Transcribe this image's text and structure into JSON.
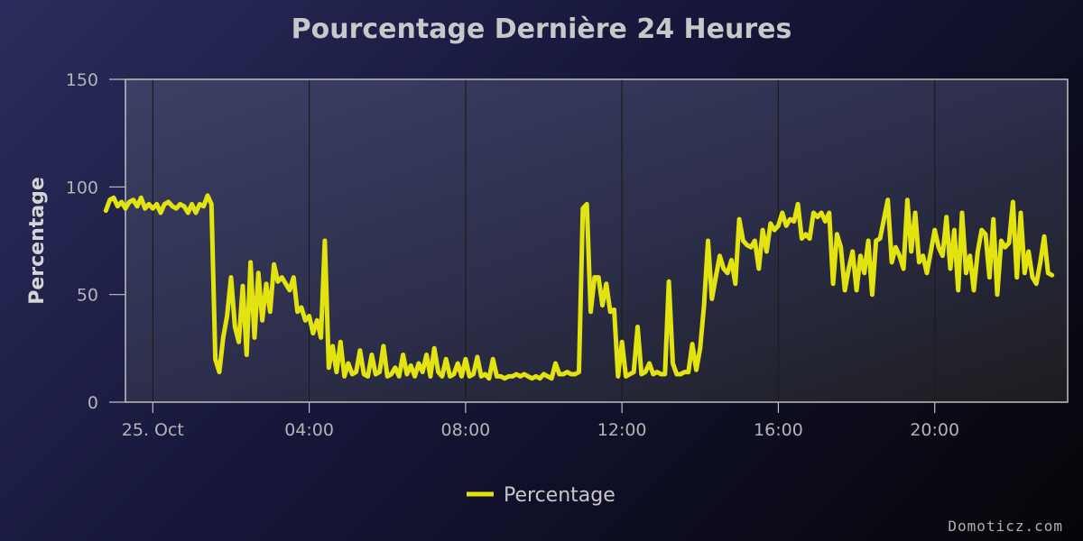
{
  "chart_data": {
    "type": "line",
    "title": "Pourcentage Dernière 24 Heures",
    "ylabel": "Percentage",
    "xlabel": "",
    "ylim": [
      0,
      150
    ],
    "yticks": [
      0,
      50,
      100,
      150
    ],
    "x_start_hour": -0.7,
    "x_end_hour": 23.4,
    "xticks": [
      {
        "hour": 0,
        "label": "25. Oct"
      },
      {
        "hour": 4,
        "label": "04:00"
      },
      {
        "hour": 8,
        "label": "08:00"
      },
      {
        "hour": 12,
        "label": "12:00"
      },
      {
        "hour": 16,
        "label": "16:00"
      },
      {
        "hour": 20,
        "label": "20:00"
      }
    ],
    "grid": "vertical",
    "legend_position": "bottom-center",
    "credit": "Domoticz.com",
    "series": [
      {
        "name": "Percentage",
        "color": "#e3e30f",
        "points": [
          [
            -1.2,
            89
          ],
          [
            -1.1,
            94
          ],
          [
            -1.0,
            95
          ],
          [
            -0.9,
            91
          ],
          [
            -0.8,
            93
          ],
          [
            -0.7,
            90
          ],
          [
            -0.6,
            93
          ],
          [
            -0.5,
            94
          ],
          [
            -0.4,
            91
          ],
          [
            -0.3,
            95
          ],
          [
            -0.2,
            90
          ],
          [
            -0.1,
            92
          ],
          [
            0.0,
            90
          ],
          [
            0.1,
            92
          ],
          [
            0.2,
            88
          ],
          [
            0.3,
            92
          ],
          [
            0.4,
            93
          ],
          [
            0.5,
            91
          ],
          [
            0.6,
            90
          ],
          [
            0.7,
            92
          ],
          [
            0.8,
            91
          ],
          [
            0.9,
            88
          ],
          [
            1.0,
            92
          ],
          [
            1.1,
            88
          ],
          [
            1.2,
            92
          ],
          [
            1.3,
            91
          ],
          [
            1.4,
            96
          ],
          [
            1.5,
            92
          ],
          [
            1.6,
            20
          ],
          [
            1.7,
            14
          ],
          [
            1.8,
            30
          ],
          [
            1.9,
            40
          ],
          [
            2.0,
            58
          ],
          [
            2.1,
            35
          ],
          [
            2.2,
            28
          ],
          [
            2.3,
            54
          ],
          [
            2.4,
            22
          ],
          [
            2.5,
            65
          ],
          [
            2.6,
            30
          ],
          [
            2.7,
            60
          ],
          [
            2.8,
            38
          ],
          [
            2.9,
            55
          ],
          [
            3.0,
            42
          ],
          [
            3.1,
            64
          ],
          [
            3.2,
            56
          ],
          [
            3.3,
            58
          ],
          [
            3.4,
            55
          ],
          [
            3.5,
            52
          ],
          [
            3.6,
            58
          ],
          [
            3.7,
            42
          ],
          [
            3.8,
            44
          ],
          [
            3.9,
            38
          ],
          [
            4.0,
            40
          ],
          [
            4.1,
            32
          ],
          [
            4.2,
            38
          ],
          [
            4.3,
            30
          ],
          [
            4.4,
            75
          ],
          [
            4.5,
            16
          ],
          [
            4.6,
            26
          ],
          [
            4.7,
            14
          ],
          [
            4.8,
            28
          ],
          [
            4.9,
            12
          ],
          [
            5.0,
            18
          ],
          [
            5.1,
            13
          ],
          [
            5.2,
            14
          ],
          [
            5.3,
            24
          ],
          [
            5.4,
            13
          ],
          [
            5.5,
            12
          ],
          [
            5.6,
            22
          ],
          [
            5.7,
            13
          ],
          [
            5.8,
            14
          ],
          [
            5.9,
            26
          ],
          [
            6.0,
            12
          ],
          [
            6.1,
            13
          ],
          [
            6.2,
            16
          ],
          [
            6.3,
            12
          ],
          [
            6.4,
            22
          ],
          [
            6.5,
            13
          ],
          [
            6.6,
            17
          ],
          [
            6.7,
            12
          ],
          [
            6.8,
            18
          ],
          [
            6.9,
            14
          ],
          [
            7.0,
            22
          ],
          [
            7.1,
            12
          ],
          [
            7.2,
            25
          ],
          [
            7.3,
            14
          ],
          [
            7.4,
            12
          ],
          [
            7.5,
            20
          ],
          [
            7.6,
            12
          ],
          [
            7.7,
            13
          ],
          [
            7.8,
            18
          ],
          [
            7.9,
            12
          ],
          [
            8.0,
            20
          ],
          [
            8.1,
            12
          ],
          [
            8.2,
            13
          ],
          [
            8.3,
            21
          ],
          [
            8.4,
            12
          ],
          [
            8.5,
            13
          ],
          [
            8.6,
            11
          ],
          [
            8.7,
            20
          ],
          [
            8.8,
            12
          ],
          [
            8.9,
            12
          ],
          [
            9.0,
            11
          ],
          [
            9.1,
            12
          ],
          [
            9.2,
            12
          ],
          [
            9.3,
            13
          ],
          [
            9.4,
            12
          ],
          [
            9.5,
            13
          ],
          [
            9.6,
            12
          ],
          [
            9.7,
            11
          ],
          [
            9.8,
            12
          ],
          [
            9.9,
            11
          ],
          [
            10.0,
            13
          ],
          [
            10.1,
            12
          ],
          [
            10.2,
            11
          ],
          [
            10.3,
            18
          ],
          [
            10.4,
            13
          ],
          [
            10.5,
            13
          ],
          [
            10.6,
            14
          ],
          [
            10.7,
            13
          ],
          [
            10.8,
            13
          ],
          [
            10.9,
            14
          ],
          [
            11.0,
            90
          ],
          [
            11.1,
            92
          ],
          [
            11.2,
            42
          ],
          [
            11.3,
            58
          ],
          [
            11.4,
            58
          ],
          [
            11.5,
            45
          ],
          [
            11.6,
            55
          ],
          [
            11.7,
            42
          ],
          [
            11.8,
            43
          ],
          [
            11.9,
            12
          ],
          [
            12.0,
            28
          ],
          [
            12.1,
            12
          ],
          [
            12.2,
            13
          ],
          [
            12.3,
            14
          ],
          [
            12.4,
            35
          ],
          [
            12.5,
            13
          ],
          [
            12.6,
            14
          ],
          [
            12.7,
            18
          ],
          [
            12.8,
            13
          ],
          [
            12.9,
            14
          ],
          [
            13.0,
            13
          ],
          [
            13.1,
            13
          ],
          [
            13.2,
            56
          ],
          [
            13.3,
            18
          ],
          [
            13.4,
            13
          ],
          [
            13.5,
            13
          ],
          [
            13.6,
            14
          ],
          [
            13.7,
            14
          ],
          [
            13.8,
            27
          ],
          [
            13.9,
            15
          ],
          [
            14.0,
            25
          ],
          [
            14.1,
            45
          ],
          [
            14.2,
            75
          ],
          [
            14.3,
            48
          ],
          [
            14.4,
            58
          ],
          [
            14.5,
            68
          ],
          [
            14.6,
            62
          ],
          [
            14.7,
            60
          ],
          [
            14.8,
            66
          ],
          [
            14.9,
            55
          ],
          [
            15.0,
            85
          ],
          [
            15.1,
            75
          ],
          [
            15.2,
            73
          ],
          [
            15.3,
            72
          ],
          [
            15.4,
            75
          ],
          [
            15.5,
            62
          ],
          [
            15.6,
            80
          ],
          [
            15.7,
            70
          ],
          [
            15.8,
            83
          ],
          [
            15.9,
            80
          ],
          [
            16.0,
            82
          ],
          [
            16.1,
            88
          ],
          [
            16.2,
            82
          ],
          [
            16.3,
            85
          ],
          [
            16.4,
            84
          ],
          [
            16.5,
            92
          ],
          [
            16.6,
            76
          ],
          [
            16.7,
            78
          ],
          [
            16.8,
            76
          ],
          [
            16.9,
            88
          ],
          [
            17.0,
            86
          ],
          [
            17.1,
            88
          ],
          [
            17.2,
            84
          ],
          [
            17.3,
            88
          ],
          [
            17.4,
            55
          ],
          [
            17.5,
            78
          ],
          [
            17.6,
            72
          ],
          [
            17.7,
            52
          ],
          [
            17.8,
            62
          ],
          [
            17.9,
            70
          ],
          [
            18.0,
            52
          ],
          [
            18.1,
            68
          ],
          [
            18.2,
            60
          ],
          [
            18.3,
            75
          ],
          [
            18.4,
            50
          ],
          [
            18.5,
            75
          ],
          [
            18.6,
            76
          ],
          [
            18.7,
            85
          ],
          [
            18.8,
            94
          ],
          [
            18.9,
            65
          ],
          [
            19.0,
            72
          ],
          [
            19.1,
            68
          ],
          [
            19.2,
            62
          ],
          [
            19.3,
            94
          ],
          [
            19.4,
            70
          ],
          [
            19.5,
            88
          ],
          [
            19.6,
            65
          ],
          [
            19.7,
            68
          ],
          [
            19.8,
            60
          ],
          [
            19.9,
            70
          ],
          [
            20.0,
            80
          ],
          [
            20.1,
            72
          ],
          [
            20.2,
            68
          ],
          [
            20.3,
            86
          ],
          [
            20.4,
            62
          ],
          [
            20.5,
            80
          ],
          [
            20.6,
            52
          ],
          [
            20.7,
            88
          ],
          [
            20.8,
            60
          ],
          [
            20.9,
            68
          ],
          [
            21.0,
            52
          ],
          [
            21.1,
            70
          ],
          [
            21.2,
            80
          ],
          [
            21.3,
            78
          ],
          [
            21.4,
            58
          ],
          [
            21.5,
            85
          ],
          [
            21.6,
            50
          ],
          [
            21.7,
            75
          ],
          [
            21.8,
            72
          ],
          [
            21.9,
            74
          ],
          [
            22.0,
            93
          ],
          [
            22.1,
            58
          ],
          [
            22.2,
            88
          ],
          [
            22.3,
            60
          ],
          [
            22.4,
            70
          ],
          [
            22.5,
            58
          ],
          [
            22.6,
            55
          ],
          [
            22.7,
            65
          ],
          [
            22.8,
            77
          ],
          [
            22.9,
            60
          ],
          [
            23.0,
            59
          ]
        ]
      }
    ]
  }
}
